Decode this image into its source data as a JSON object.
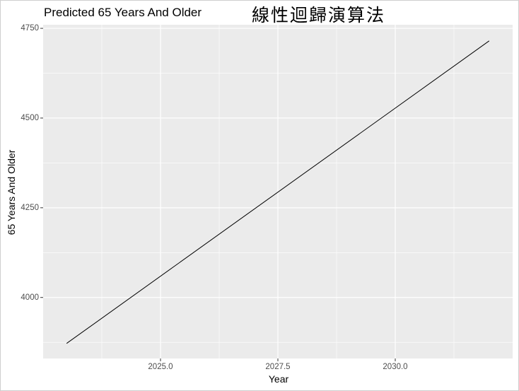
{
  "header": {
    "chart_title": "Predicted 65 Years And Older",
    "overlay_title": "線性迴歸演算法"
  },
  "chart_data": {
    "type": "line",
    "title": "Predicted 65 Years And Older",
    "xlabel": "Year",
    "ylabel": "65 Years And Older",
    "x": [
      2023,
      2032
    ],
    "series": [
      {
        "values": [
          3872,
          4715
        ]
      }
    ],
    "xlim": [
      2022.5,
      2032.5
    ],
    "ylim": [
      3830,
      4760
    ],
    "xticks": [
      2025.0,
      2027.5,
      2030.0
    ],
    "xtick_labels": [
      "2025.0",
      "2027.5",
      "2030.0"
    ],
    "yticks": [
      4000,
      4250,
      4500,
      4750
    ],
    "ytick_labels": [
      "4000",
      "4250",
      "4500",
      "4750"
    ],
    "grid": true,
    "panel_background": "#ebebeb",
    "grid_color": "#ffffff",
    "line_color": "#000000"
  }
}
